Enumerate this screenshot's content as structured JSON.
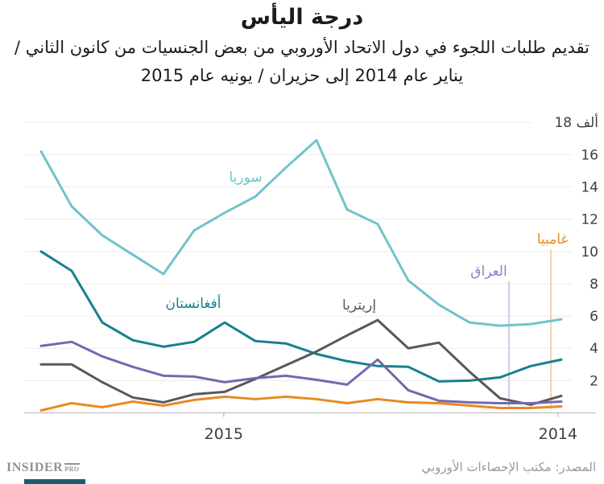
{
  "header": {
    "title": "درجة اليأس",
    "subtitle_lines": [
      "تقديم طلبات اللجوء في دول الاتحاد الأوروبي من بعض الجنسيات من كانون الثاني /",
      "يناير عام 2014 إلى حزيران / يونيه عام 2015"
    ]
  },
  "chart_data": {
    "type": "line",
    "title": "درجة اليأس",
    "subtitle": "تقديم طلبات اللجوء في دول الاتحاد الأوروبي من بعض الجنسيات من كانون الثاني / يناير عام 2014 إلى حزيران / يونيه عام 2015",
    "unit": "ألف (thousands of asylum applications)",
    "grid": true,
    "x_axis": {
      "direction": "right-to-left (time increases leftward: Jan 2014 at far right, Jun 2015 at far left)",
      "months_screen_left_to_right": [
        "2015-06",
        "2015-05",
        "2015-04",
        "2015-03",
        "2015-02",
        "2015-01",
        "2014-12",
        "2014-11",
        "2014-10",
        "2014-09",
        "2014-08",
        "2014-07",
        "2014-06",
        "2014-05",
        "2014-04",
        "2014-03",
        "2014-02",
        "2014-01"
      ],
      "ticks": [
        {
          "label": "2015",
          "index": 5.97
        },
        {
          "label": "2014",
          "index": 16.89
        }
      ]
    },
    "y_axis": {
      "ticks": [
        2,
        4,
        6,
        8,
        10,
        12,
        14,
        16,
        18
      ],
      "top_label": "18 ألف",
      "range": [
        0,
        18.6
      ],
      "side": "right"
    },
    "series": [
      {
        "label": "سوريا",
        "color": "#6ec5c8",
        "values": [
          16.2,
          12.8,
          11.0,
          9.8,
          8.6,
          11.3,
          12.4,
          13.4,
          15.2,
          16.9,
          12.6,
          11.7,
          8.2,
          6.7,
          5.6,
          5.4,
          5.5,
          5.8
        ]
      },
      {
        "label": "أفغانستان",
        "color": "#17808d",
        "values": [
          10.0,
          8.8,
          5.6,
          4.5,
          4.1,
          4.4,
          5.6,
          4.45,
          4.3,
          3.65,
          3.2,
          2.9,
          2.85,
          1.95,
          2.0,
          2.2,
          2.9,
          3.3
        ]
      },
      {
        "label": "إريتريا",
        "color": "#57585c",
        "values": [
          3.0,
          3.0,
          1.9,
          0.95,
          0.65,
          1.15,
          1.3,
          2.1,
          2.95,
          3.8,
          4.8,
          5.75,
          4.0,
          4.35,
          2.55,
          0.9,
          0.5,
          1.05
        ]
      },
      {
        "label": "العراق",
        "color": "#7568ae",
        "values": [
          4.15,
          4.4,
          3.5,
          2.85,
          2.3,
          2.25,
          1.9,
          2.15,
          2.3,
          2.05,
          1.75,
          3.3,
          1.4,
          0.75,
          0.65,
          0.6,
          0.6,
          0.7
        ]
      },
      {
        "label": "غامبيا",
        "color": "#e78a20",
        "values": [
          0.15,
          0.6,
          0.35,
          0.7,
          0.45,
          0.8,
          1.0,
          0.85,
          1.0,
          0.85,
          0.6,
          0.85,
          0.65,
          0.6,
          0.45,
          0.3,
          0.3,
          0.4
        ]
      }
    ],
    "style_colors": {
      "grid": "#ececec",
      "axis": "#bfbfbf",
      "tick_text": "#3f3f3f",
      "iraq_leader": "#bdb8dc",
      "gambia_leader": "#f2c18f"
    }
  },
  "footer": {
    "source": "المصدر: مكتب الإحصاءات الأوروبي",
    "logo_main": "INSIDER",
    "logo_suffix": "PRO"
  }
}
